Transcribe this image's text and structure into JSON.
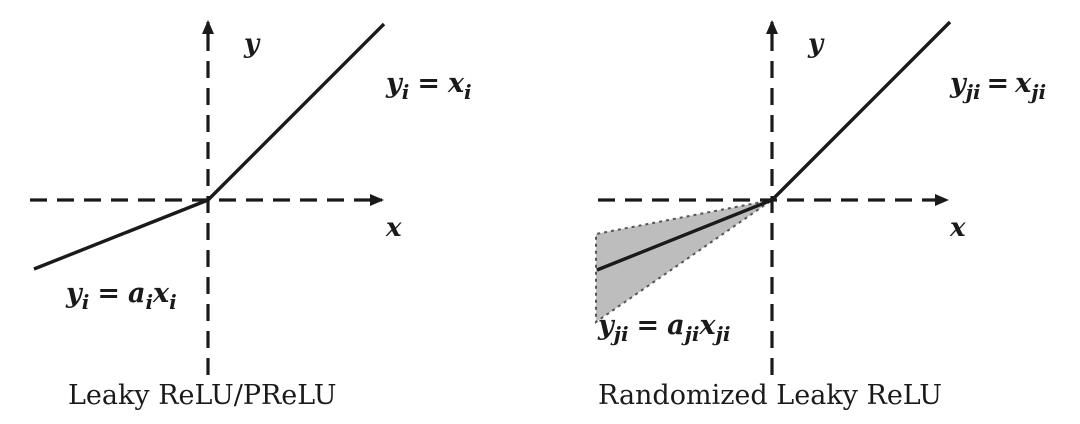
{
  "panels": [
    {
      "caption": "Leaky ReLU/PReLU",
      "y_axis_label": "y",
      "x_axis_label": "x",
      "positive_equation": {
        "lhs": "y",
        "lhs_sub": "i",
        "rhs": "x",
        "rhs_sub": "i"
      },
      "negative_equation": {
        "lhs": "y",
        "lhs_sub": "i",
        "coef": "a",
        "coef_sub": "i",
        "var": "x",
        "var_sub": "i"
      }
    },
    {
      "caption": "Randomized Leaky ReLU",
      "y_axis_label": "y",
      "x_axis_label": "x",
      "positive_equation": {
        "lhs": "y",
        "lhs_sub": "ji",
        "rhs": "x",
        "rhs_sub": "ji"
      },
      "negative_equation": {
        "lhs": "y",
        "lhs_sub": "ji",
        "coef": "a",
        "coef_sub": "ji",
        "var": "x",
        "var_sub": "ji"
      }
    }
  ],
  "colors": {
    "line": "#1a1a1a",
    "shade_fill": "#bdbdbd",
    "shade_border": "#555555"
  }
}
